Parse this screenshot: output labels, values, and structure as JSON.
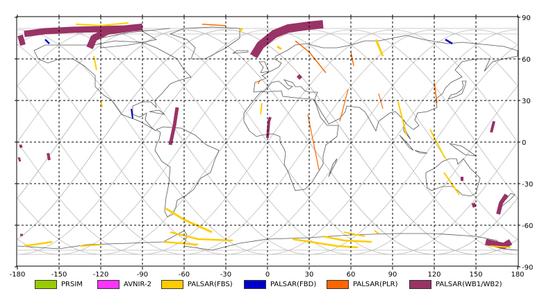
{
  "map": {
    "x_ticks": [
      "-180",
      "-150",
      "-120",
      "-90",
      "-60",
      "-30",
      "0",
      "30",
      "60",
      "90",
      "120",
      "150",
      "180"
    ],
    "y_ticks": [
      "90",
      "60",
      "30",
      "0",
      "-30",
      "-60",
      "-90"
    ],
    "lon_range": [
      -180,
      180
    ],
    "lat_range": [
      -90,
      90
    ],
    "grid": "dashed",
    "colors": {
      "prism": "#99cc00",
      "avnir2": "#ff33ff",
      "fbs": "#ffcc00",
      "fbd": "#0000cc",
      "plr": "#ff6600",
      "wb": "#993366",
      "coast": "#555555",
      "orbit": "#bbbbbb"
    }
  },
  "legend": {
    "items": [
      {
        "label": "PRSIM",
        "color": "#99cc00"
      },
      {
        "label": "AVNIR-2",
        "color": "#ff33ff"
      },
      {
        "label": "PALSAR(FBS)",
        "color": "#ffcc00"
      },
      {
        "label": "PALSAR(FBD)",
        "color": "#0000cc"
      },
      {
        "label": "PALSAR(PLR)",
        "color": "#ff6600"
      },
      {
        "label": "PALSAR(WB1/WB2)",
        "color": "#993366"
      }
    ]
  }
}
